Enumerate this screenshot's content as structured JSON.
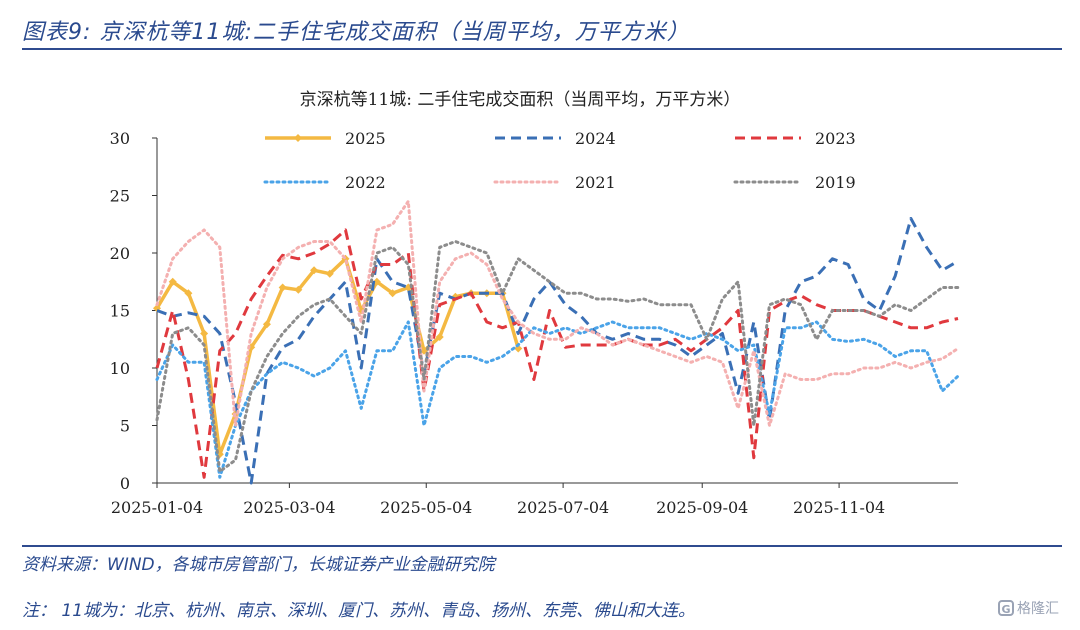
{
  "figure": {
    "title": "图表9:  京深杭等11城:二手住宅成交面积（当周平均，万平方米）",
    "source": "资料来源：WIND，各城市房管部门，长城证券产业金融研究院",
    "note": "注：  11城为：北京、杭州、南京、深圳、厦门、苏州、青岛、扬州、东莞、佛山和大连。",
    "watermark": "格隆汇",
    "watermark_logo": "G"
  },
  "chart_data": {
    "type": "line",
    "title": "京深杭等11城: 二手住宅成交面积（当周平均，万平方米）",
    "xlabel": "",
    "ylabel": "",
    "ylim": [
      0,
      30
    ],
    "yticks": [
      0,
      5,
      10,
      15,
      20,
      25,
      30
    ],
    "xticks": [
      "2025-01-04",
      "2025-03-04",
      "2025-05-04",
      "2025-07-04",
      "2025-09-04",
      "2025-11-04"
    ],
    "grid": false,
    "legend": "top",
    "x_start": "2025-01-04",
    "x_end": "2025-12-27",
    "series": [
      {
        "name": "2025",
        "color": "#f4b942",
        "style": "solid-marker",
        "x": [
          "2025-01-04",
          "2025-01-11",
          "2025-01-18",
          "2025-01-25",
          "2025-02-01",
          "2025-02-08",
          "2025-02-15",
          "2025-02-22",
          "2025-03-01",
          "2025-03-08",
          "2025-03-15",
          "2025-03-22",
          "2025-03-29",
          "2025-04-05",
          "2025-04-12",
          "2025-04-19",
          "2025-04-26",
          "2025-05-03",
          "2025-05-10",
          "2025-05-17",
          "2025-05-24",
          "2025-05-31",
          "2025-06-07",
          "2025-06-14"
        ],
        "y": [
          15.2,
          17.5,
          16.5,
          13.0,
          2.5,
          6.0,
          11.8,
          13.8,
          17.0,
          16.8,
          18.5,
          18.2,
          19.5,
          15.0,
          17.5,
          16.5,
          17.0,
          11.5,
          12.7,
          16.2,
          16.5,
          16.5,
          16.5,
          11.7
        ]
      },
      {
        "name": "2024",
        "color": "#3a6fb5",
        "style": "dashed",
        "x": [
          "2025-01-04",
          "2025-01-11",
          "2025-01-18",
          "2025-01-25",
          "2025-02-01",
          "2025-02-08",
          "2025-02-15",
          "2025-02-22",
          "2025-03-01",
          "2025-03-08",
          "2025-03-15",
          "2025-03-22",
          "2025-03-29",
          "2025-04-05",
          "2025-04-12",
          "2025-04-19",
          "2025-04-26",
          "2025-05-03",
          "2025-05-10",
          "2025-05-17",
          "2025-05-24",
          "2025-05-31",
          "2025-06-07",
          "2025-06-14",
          "2025-06-21",
          "2025-06-28",
          "2025-07-05",
          "2025-07-12",
          "2025-07-19",
          "2025-07-26",
          "2025-08-02",
          "2025-08-09",
          "2025-08-16",
          "2025-08-23",
          "2025-08-30",
          "2025-09-06",
          "2025-09-13",
          "2025-09-20",
          "2025-09-27",
          "2025-10-04",
          "2025-10-11",
          "2025-10-18",
          "2025-10-25",
          "2025-11-01",
          "2025-11-08",
          "2025-11-15",
          "2025-11-22",
          "2025-11-29",
          "2025-12-06",
          "2025-12-13",
          "2025-12-20",
          "2025-12-27"
        ],
        "y": [
          15.0,
          14.5,
          14.8,
          14.5,
          13.0,
          7.0,
          0.0,
          9.5,
          11.8,
          12.5,
          14.5,
          16.0,
          17.5,
          10.0,
          19.5,
          17.5,
          17.0,
          9.5,
          16.5,
          16.0,
          16.5,
          16.5,
          16.5,
          13.0,
          16.0,
          17.5,
          15.5,
          14.5,
          13.0,
          12.5,
          13.0,
          12.5,
          12.5,
          12.0,
          11.0,
          12.0,
          13.0,
          7.8,
          14.0,
          5.5,
          15.0,
          17.5,
          18.0,
          19.5,
          19.0,
          16.0,
          15.0,
          18.0,
          23.0,
          20.5,
          18.5,
          19.3
        ]
      },
      {
        "name": "2023",
        "color": "#e0393e",
        "style": "dashed",
        "x": [
          "2025-01-04",
          "2025-01-11",
          "2025-01-18",
          "2025-01-25",
          "2025-02-01",
          "2025-02-08",
          "2025-02-15",
          "2025-02-22",
          "2025-03-01",
          "2025-03-08",
          "2025-03-15",
          "2025-03-22",
          "2025-03-29",
          "2025-04-05",
          "2025-04-12",
          "2025-04-19",
          "2025-04-26",
          "2025-05-03",
          "2025-05-10",
          "2025-05-17",
          "2025-05-24",
          "2025-05-31",
          "2025-06-07",
          "2025-06-14",
          "2025-06-21",
          "2025-06-28",
          "2025-07-05",
          "2025-07-12",
          "2025-07-19",
          "2025-07-26",
          "2025-08-02",
          "2025-08-09",
          "2025-08-16",
          "2025-08-23",
          "2025-08-30",
          "2025-09-06",
          "2025-09-13",
          "2025-09-20",
          "2025-09-27",
          "2025-10-04",
          "2025-10-11",
          "2025-10-18",
          "2025-10-25",
          "2025-11-01",
          "2025-11-08",
          "2025-11-15",
          "2025-11-22",
          "2025-11-29",
          "2025-12-06",
          "2025-12-13",
          "2025-12-20",
          "2025-12-27"
        ],
        "y": [
          10.0,
          15.0,
          9.0,
          0.5,
          11.5,
          13.0,
          16.0,
          18.0,
          19.8,
          19.5,
          20.0,
          20.8,
          22.0,
          16.0,
          19.0,
          19.0,
          20.0,
          8.0,
          15.5,
          16.0,
          16.5,
          14.0,
          13.5,
          14.0,
          9.0,
          15.0,
          11.8,
          12.0,
          12.0,
          12.0,
          12.5,
          12.0,
          12.0,
          12.5,
          11.5,
          12.5,
          13.5,
          15.0,
          2.2,
          15.0,
          15.8,
          16.3,
          15.5,
          15.0,
          15.0,
          15.0,
          14.5,
          14.0,
          13.5,
          13.5,
          14.0,
          14.3
        ]
      },
      {
        "name": "2022",
        "color": "#4aa3e8",
        "style": "dotted",
        "x": [
          "2025-01-04",
          "2025-01-11",
          "2025-01-18",
          "2025-01-25",
          "2025-02-01",
          "2025-02-08",
          "2025-02-15",
          "2025-02-22",
          "2025-03-01",
          "2025-03-08",
          "2025-03-15",
          "2025-03-22",
          "2025-03-29",
          "2025-04-05",
          "2025-04-12",
          "2025-04-19",
          "2025-04-26",
          "2025-05-03",
          "2025-05-10",
          "2025-05-17",
          "2025-05-24",
          "2025-05-31",
          "2025-06-07",
          "2025-06-14",
          "2025-06-21",
          "2025-06-28",
          "2025-07-05",
          "2025-07-12",
          "2025-07-19",
          "2025-07-26",
          "2025-08-02",
          "2025-08-09",
          "2025-08-16",
          "2025-08-23",
          "2025-08-30",
          "2025-09-06",
          "2025-09-13",
          "2025-09-20",
          "2025-09-27",
          "2025-10-04",
          "2025-10-11",
          "2025-10-18",
          "2025-10-25",
          "2025-11-01",
          "2025-11-08",
          "2025-11-15",
          "2025-11-22",
          "2025-11-29",
          "2025-12-06",
          "2025-12-13",
          "2025-12-20",
          "2025-12-27"
        ],
        "y": [
          9.0,
          12.0,
          10.5,
          10.5,
          0.5,
          5.0,
          8.0,
          9.5,
          10.5,
          10.0,
          9.3,
          10.0,
          11.5,
          6.5,
          11.5,
          11.5,
          14.0,
          5.0,
          10.0,
          11.0,
          11.0,
          10.5,
          11.0,
          12.0,
          13.5,
          13.0,
          13.5,
          13.0,
          13.5,
          14.0,
          13.5,
          13.5,
          13.5,
          13.0,
          12.5,
          13.0,
          12.5,
          11.5,
          12.0,
          6.0,
          13.5,
          13.5,
          14.0,
          12.5,
          12.3,
          12.5,
          12.0,
          11.0,
          11.5,
          11.5,
          8.0,
          9.3
        ]
      },
      {
        "name": "2021",
        "color": "#f4b0b0",
        "style": "dotted",
        "x": [
          "2025-01-04",
          "2025-01-11",
          "2025-01-18",
          "2025-01-25",
          "2025-02-01",
          "2025-02-08",
          "2025-02-15",
          "2025-02-22",
          "2025-03-01",
          "2025-03-08",
          "2025-03-15",
          "2025-03-22",
          "2025-03-29",
          "2025-04-05",
          "2025-04-12",
          "2025-04-19",
          "2025-04-26",
          "2025-05-03",
          "2025-05-10",
          "2025-05-17",
          "2025-05-24",
          "2025-05-31",
          "2025-06-07",
          "2025-06-14",
          "2025-06-21",
          "2025-06-28",
          "2025-07-05",
          "2025-07-12",
          "2025-07-19",
          "2025-07-26",
          "2025-08-02",
          "2025-08-09",
          "2025-08-16",
          "2025-08-23",
          "2025-08-30",
          "2025-09-06",
          "2025-09-13",
          "2025-09-20",
          "2025-09-27",
          "2025-10-04",
          "2025-10-11",
          "2025-10-18",
          "2025-10-25",
          "2025-11-01",
          "2025-11-08",
          "2025-11-15",
          "2025-11-22",
          "2025-11-29",
          "2025-12-06",
          "2025-12-13",
          "2025-12-20",
          "2025-12-27"
        ],
        "y": [
          15.5,
          19.5,
          21.0,
          22.0,
          20.5,
          5.0,
          13.0,
          17.0,
          19.5,
          20.5,
          21.0,
          21.0,
          19.5,
          14.0,
          22.0,
          22.5,
          24.5,
          8.0,
          17.5,
          19.5,
          20.0,
          19.0,
          16.0,
          14.0,
          13.0,
          12.5,
          12.5,
          13.5,
          13.0,
          12.0,
          12.5,
          12.0,
          11.5,
          11.0,
          10.5,
          11.0,
          10.5,
          6.5,
          11.5,
          5.0,
          9.5,
          9.0,
          9.0,
          9.5,
          9.5,
          10.0,
          10.0,
          10.5,
          10.0,
          10.5,
          10.8,
          11.7
        ]
      },
      {
        "name": "2019",
        "color": "#8c8c8c",
        "style": "dotted",
        "x": [
          "2025-01-04",
          "2025-01-11",
          "2025-01-18",
          "2025-01-25",
          "2025-02-01",
          "2025-02-08",
          "2025-02-15",
          "2025-02-22",
          "2025-03-01",
          "2025-03-08",
          "2025-03-15",
          "2025-03-22",
          "2025-03-29",
          "2025-04-05",
          "2025-04-12",
          "2025-04-19",
          "2025-04-26",
          "2025-05-03",
          "2025-05-10",
          "2025-05-17",
          "2025-05-24",
          "2025-05-31",
          "2025-06-07",
          "2025-06-14",
          "2025-06-21",
          "2025-06-28",
          "2025-07-05",
          "2025-07-12",
          "2025-07-19",
          "2025-07-26",
          "2025-08-02",
          "2025-08-09",
          "2025-08-16",
          "2025-08-23",
          "2025-08-30",
          "2025-09-06",
          "2025-09-13",
          "2025-09-20",
          "2025-09-27",
          "2025-10-04",
          "2025-10-11",
          "2025-10-18",
          "2025-10-25",
          "2025-11-01",
          "2025-11-08",
          "2025-11-15",
          "2025-11-22",
          "2025-11-29",
          "2025-12-06",
          "2025-12-13",
          "2025-12-20",
          "2025-12-27"
        ],
        "y": [
          5.5,
          13.0,
          13.5,
          12.0,
          1.0,
          2.0,
          8.0,
          11.0,
          13.0,
          14.5,
          15.5,
          16.0,
          14.5,
          13.0,
          20.0,
          20.5,
          19.0,
          9.0,
          20.5,
          21.0,
          20.5,
          20.0,
          16.5,
          19.5,
          18.5,
          17.5,
          16.5,
          16.5,
          16.0,
          16.0,
          15.8,
          16.0,
          15.5,
          15.5,
          15.5,
          12.5,
          16.0,
          17.5,
          5.0,
          15.5,
          16.0,
          15.5,
          12.5,
          15.0,
          15.0,
          15.0,
          14.5,
          15.5,
          15.0,
          16.0,
          17.0,
          17.0
        ]
      }
    ]
  }
}
